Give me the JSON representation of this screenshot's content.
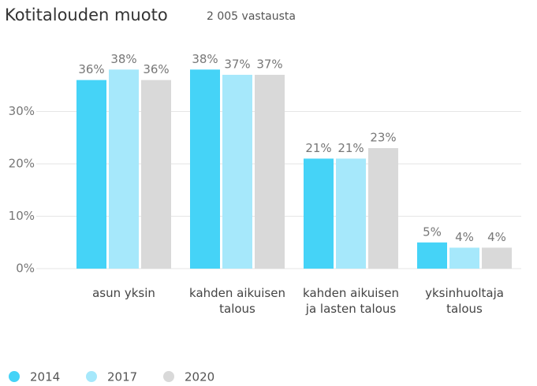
{
  "chart_data": {
    "type": "bar",
    "title": "Kotitalouden muoto",
    "subtitle": "2 005 vastausta",
    "categories": [
      "asun yksin",
      "kahden aikuisen talous",
      "kahden aikuisen ja lasten talous",
      "yksinhuoltaja talous"
    ],
    "series": [
      {
        "name": "2014",
        "color": "#45d3f7",
        "values": [
          36,
          38,
          21,
          5
        ],
        "value_labels": [
          "36%",
          "38%",
          "21%",
          "5%"
        ]
      },
      {
        "name": "2017",
        "color": "#a6e8fb",
        "values": [
          38,
          37,
          21,
          4
        ],
        "value_labels": [
          "38%",
          "37%",
          "21%",
          "4%"
        ]
      },
      {
        "name": "2020",
        "color": "#d9d9d9",
        "values": [
          36,
          37,
          23,
          4
        ],
        "value_labels": [
          "36%",
          "37%",
          "23%",
          "4%"
        ]
      }
    ],
    "ylim": [
      0,
      40
    ],
    "yticks": [
      {
        "value": 0,
        "label": "0%"
      },
      {
        "value": 10,
        "label": "10%"
      },
      {
        "value": 20,
        "label": "20%"
      },
      {
        "value": 30,
        "label": "30%"
      }
    ],
    "grid": true,
    "legend": "bottom"
  }
}
